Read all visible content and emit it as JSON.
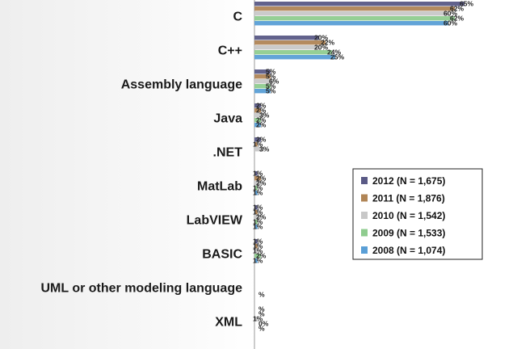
{
  "chart_data": {
    "type": "bar",
    "orientation": "horizontal",
    "categories": [
      "C",
      "C++",
      "Assembly language",
      "Java",
      ".NET",
      "MatLab",
      "LabVIEW",
      "BASIC",
      "UML or other modeling language",
      "XML"
    ],
    "series": [
      {
        "name": "2012 (N = 1,675)",
        "color": "#5a5a86",
        "values": [
          65,
          20,
          5,
          2,
          2,
          1,
          1,
          1,
          null,
          null
        ],
        "labels": [
          "65%",
          "20%",
          "5%",
          "2%",
          "2%",
          "1%",
          "1%",
          "1%",
          "",
          "%"
        ]
      },
      {
        "name": "2011 (N = 1,876)",
        "color": "#b08556",
        "values": [
          62,
          22,
          5,
          2,
          1,
          2,
          1,
          1,
          null,
          null
        ],
        "labels": [
          "62%",
          "22%",
          "5%",
          "2%",
          "1%",
          "2%",
          "1%",
          "1%",
          "",
          "%"
        ]
      },
      {
        "name": "2010 (N = 1,542)",
        "color": "#c8c8c8",
        "values": [
          60,
          20,
          6,
          3,
          3,
          2,
          2,
          1,
          null,
          1
        ],
        "labels": [
          "60%",
          "20%",
          "6%",
          "3%",
          "3%",
          "2%",
          "2%",
          "1%",
          "",
          "1%"
        ]
      },
      {
        "name": "2009 (N = 1,533)",
        "color": "#8fcc8f",
        "values": [
          62,
          24,
          5,
          2,
          null,
          1,
          1,
          2,
          null,
          0
        ],
        "labels": [
          "62%",
          "24%",
          "5%",
          "2%",
          "",
          "1%",
          "1%",
          "2%",
          "",
          "0%"
        ]
      },
      {
        "name": "2008 (N = 1,074)",
        "color": "#5a9fd6",
        "values": [
          60,
          25,
          5,
          2,
          null,
          1,
          1,
          1,
          null,
          0
        ],
        "labels": [
          "60%",
          "25%",
          "5%",
          "2%",
          "",
          "1%",
          "1%",
          "1%",
          "%",
          "%"
        ]
      }
    ],
    "xlim": [
      0,
      70
    ],
    "grid": false,
    "legend_position": "right"
  }
}
